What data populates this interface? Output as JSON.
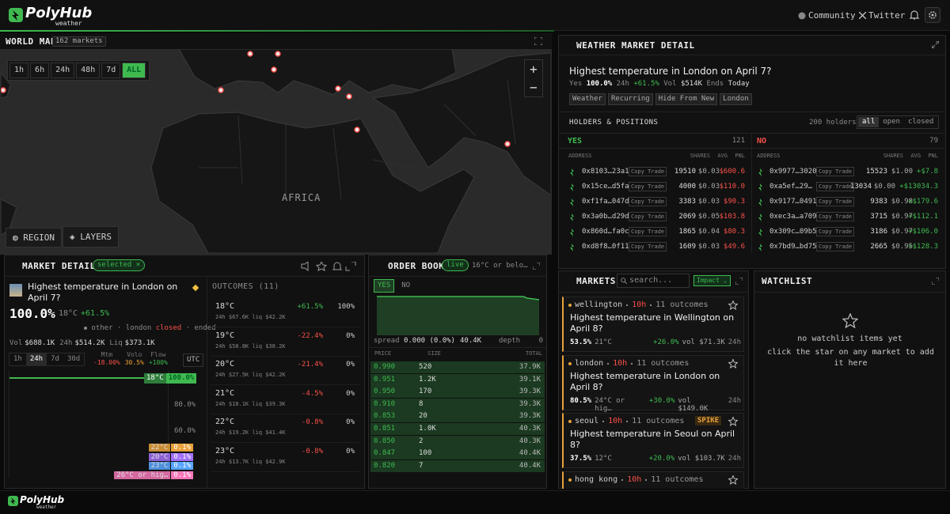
{
  "header": {
    "brand": "PolyHub",
    "tagline": "weather",
    "links": [
      "Community",
      "Twitter"
    ]
  },
  "world_map": {
    "title": "WORLD MAP",
    "count": "162 markets",
    "ranges": [
      "1h",
      "6h",
      "24h",
      "48h",
      "7d",
      "ALL"
    ],
    "active_range": 5,
    "region_label": "AFRICA",
    "zoom": [
      "+",
      "−"
    ],
    "controls": [
      "REGION",
      "LAYERS"
    ]
  },
  "weather_detail": {
    "title": "WEATHER MARKET DETAIL",
    "question": "Highest temperature in London on April 7?",
    "yes_label": "Yes",
    "yes_price": "100.0%",
    "change_label": "24h",
    "change": "+61.5%",
    "vol_label": "Vol",
    "vol": "$514K",
    "ends_label": "Ends",
    "ends": "Today",
    "tags": [
      "Weather",
      "Recurring",
      "Hide From New",
      "London"
    ],
    "holders": {
      "title": "HOLDERS & POSITIONS",
      "count": "200 holders",
      "filters": [
        "all",
        "open",
        "closed"
      ],
      "active_filter": 0,
      "copy_label": "Copy Trade",
      "sides": [
        {
          "label": "YES",
          "count": "121",
          "color": "#3fb950",
          "columns": [
            "ADDRESS",
            "SHARES",
            "AVG",
            "PNL"
          ],
          "rows": [
            [
              "0x8103…23a1",
              "19510",
              "$0.03",
              "$600.6"
            ],
            [
              "0x15ce…d5fa",
              "4000",
              "$0.03",
              "$110.0"
            ],
            [
              "0xf1fa…047d",
              "3383",
              "$0.03",
              "$90.3"
            ],
            [
              "0x3a0b…d29d",
              "2069",
              "$0.05",
              "$103.8"
            ],
            [
              "0x860d…fa0c",
              "1865",
              "$0.04",
              "$80.3"
            ],
            [
              "0xd8f8…0f11",
              "1609",
              "$0.03",
              "$49.6"
            ]
          ]
        },
        {
          "label": "NO",
          "count": "79",
          "color": "#f85149",
          "columns": [
            "ADDRESS",
            "SHARES",
            "AVG",
            "PNL"
          ],
          "rows": [
            [
              "0x9977…3020",
              "15523",
              "$1.00",
              "+$7.8"
            ],
            [
              "0xa5ef…29…",
              "13034",
              "$0.00",
              "+$13034.3"
            ],
            [
              "0x9177…0491",
              "9383",
              "$0.98",
              "+$179.6"
            ],
            [
              "0xec3a…a709",
              "3715",
              "$0.97",
              "+$112.1"
            ],
            [
              "0x309c…09b5",
              "3186",
              "$0.97",
              "+$106.0"
            ],
            [
              "0x7bd9…bd75",
              "2665",
              "$0.95",
              "+$128.3"
            ]
          ]
        }
      ]
    }
  },
  "market_detail": {
    "title": "MARKET DETAIL",
    "badge": "selected ×",
    "question": "Highest temperature in London on April 7?",
    "price": "100.0%",
    "temp": "18°C",
    "change": "+61.5%",
    "meta": "other · london",
    "status": "closed",
    "meta_end": "· ended",
    "stats": [
      {
        "label": "Vol",
        "value": "$688.1K"
      },
      {
        "label": "24h",
        "value": "$514.2K"
      },
      {
        "label": "Liq",
        "value": "$373.1K"
      }
    ],
    "tabs": [
      "1h",
      "24h",
      "7d",
      "30d"
    ],
    "active_tab": 1,
    "metrics": [
      {
        "label": "Mtm",
        "value": "-18.00%",
        "color": "#f85149"
      },
      {
        "label": "Volo",
        "value": "30.5%",
        "color": "#f0a030"
      },
      {
        "label": "Flow",
        "value": "+100%",
        "color": "#3fb950"
      }
    ],
    "timezone": "UTC",
    "chart": {
      "lead": {
        "name": "18°C",
        "value": "100.0%"
      },
      "axis": [
        "80.0%",
        "60.0%"
      ],
      "tail": [
        {
          "name": "22°C",
          "value": "0.1%",
          "color": "#e8a23a"
        },
        {
          "name": "20°C",
          "value": "0.1%",
          "color": "#a371f7"
        },
        {
          "name": "23°C",
          "value": "0.1%",
          "color": "#58a6ff"
        },
        {
          "name": "26°C or hig…",
          "value": "0.1%",
          "color": "#f778ba"
        }
      ]
    },
    "outcomes_title": "OUTCOMES (11)",
    "outcomes": [
      {
        "name": "18°C",
        "change": "+61.5%",
        "pct": "100%",
        "sub": "24h $67.6K liq $42.2K"
      },
      {
        "name": "19°C",
        "change": "-22.4%",
        "pct": "0%",
        "sub": "24h $58.8K liq $38.2K"
      },
      {
        "name": "20°C",
        "change": "-21.4%",
        "pct": "0%",
        "sub": "24h $27.5K liq $42.2K"
      },
      {
        "name": "21°C",
        "change": "-4.5%",
        "pct": "0%",
        "sub": "24h $18.1K liq $39.3K"
      },
      {
        "name": "22°C",
        "change": "-0.8%",
        "pct": "0%",
        "sub": "24h $19.2K liq $41.4K"
      },
      {
        "name": "23°C",
        "change": "-0.8%",
        "pct": "0%",
        "sub": "24h $13.7K liq $42.9K"
      }
    ]
  },
  "order_book": {
    "title": "ORDER BOOK",
    "status": "live",
    "outcome": "16°C or belo…",
    "sides": [
      "YES",
      "NO"
    ],
    "spread_label": "spread",
    "spread": "0.000 (0.0%)",
    "depth_total": "40.4K",
    "depth_label": "depth",
    "depth_end": "0",
    "columns": [
      "PRICE",
      "SIZE",
      "TOTAL"
    ],
    "rows": [
      [
        "0.990",
        "520",
        "37.9K"
      ],
      [
        "0.951",
        "1.2K",
        "39.1K"
      ],
      [
        "0.950",
        "170",
        "39.3K"
      ],
      [
        "0.910",
        "8",
        "39.3K"
      ],
      [
        "0.853",
        "20",
        "39.3K"
      ],
      [
        "0.851",
        "1.0K",
        "40.3K"
      ],
      [
        "0.850",
        "2",
        "40.3K"
      ],
      [
        "0.847",
        "100",
        "40.4K"
      ],
      [
        "0.820",
        "7",
        "40.4K"
      ]
    ]
  },
  "markets": {
    "title": "MARKETS",
    "search": "search...",
    "sort": "Impact ⌄",
    "items": [
      {
        "city": "wellington",
        "age": "10h",
        "outcomes": "11 outcomes",
        "question": "Highest temperature in Wellington on April 8?",
        "price": "53.5%",
        "temp": "21°C",
        "change": "+26.0%",
        "vol": "vol $71.3K",
        "window": "24h"
      },
      {
        "city": "london",
        "age": "10h",
        "outcomes": "11 outcomes",
        "question": "Highest temperature in London on April 8?",
        "price": "80.5%",
        "temp": "24°C or hig…",
        "change": "+30.0%",
        "vol": "vol $149.0K",
        "window": "24h"
      },
      {
        "city": "seoul",
        "age": "10h",
        "outcomes": "11 outcomes",
        "badge": "SPIKE",
        "question": "Highest temperature in Seoul on April 8?",
        "price": "37.5%",
        "temp": "12°C",
        "change": "+20.0%",
        "vol": "vol $103.7K",
        "window": "24h"
      },
      {
        "city": "hong kong",
        "age": "10h",
        "outcomes": "11 outcomes"
      }
    ]
  },
  "watchlist": {
    "title": "WATCHLIST",
    "empty": "no watchlist items yet",
    "hint": "click the star on any market to add it here"
  },
  "footer": {
    "brand": "PolyHub",
    "tagline": "weather"
  }
}
